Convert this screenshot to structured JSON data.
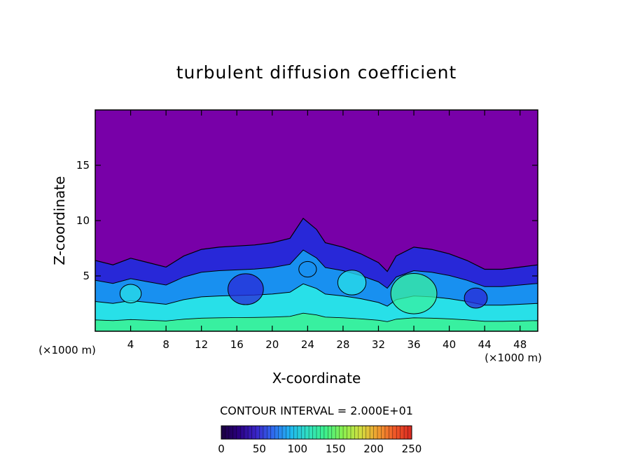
{
  "chart_data": {
    "type": "heatmap",
    "title": "turbulent diffusion coefficient",
    "xlabel": "X-coordinate",
    "ylabel": "Z-coordinate",
    "x_unit": "(×1000 m)",
    "z_unit": "(×1000 m)",
    "xlim": [
      0,
      50
    ],
    "ylim": [
      0,
      20
    ],
    "x_ticks": [
      4,
      8,
      12,
      16,
      20,
      24,
      28,
      32,
      36,
      40,
      44,
      48
    ],
    "y_ticks": [
      5,
      10,
      15
    ],
    "contour_interval_text": "CONTOUR INTERVAL = 2.000E+01",
    "colorbar": {
      "range": [
        0,
        250
      ],
      "ticks": [
        0,
        50,
        100,
        150,
        200,
        250
      ],
      "colors": [
        "#1a0040",
        "#2a0080",
        "#3a24c8",
        "#2f6cf0",
        "#1fb8f0",
        "#30e0c0",
        "#3cf08c",
        "#88f050",
        "#d0e040",
        "#f0a030",
        "#f05828",
        "#d82820"
      ]
    },
    "field_colors": {
      "background": "#7800a8",
      "low": "#2828d8",
      "mid": "#1890f0",
      "high": "#28e0e8",
      "peak": "#38f0a0"
    },
    "turbulent_layer_top": [
      {
        "x": 0,
        "z": 6.4
      },
      {
        "x": 2,
        "z": 6.0
      },
      {
        "x": 4,
        "z": 6.6
      },
      {
        "x": 6,
        "z": 6.2
      },
      {
        "x": 8,
        "z": 5.8
      },
      {
        "x": 10,
        "z": 6.8
      },
      {
        "x": 12,
        "z": 7.4
      },
      {
        "x": 14,
        "z": 7.6
      },
      {
        "x": 16,
        "z": 7.7
      },
      {
        "x": 18,
        "z": 7.8
      },
      {
        "x": 20,
        "z": 8.0
      },
      {
        "x": 22,
        "z": 8.4
      },
      {
        "x": 23.5,
        "z": 10.2
      },
      {
        "x": 25,
        "z": 9.2
      },
      {
        "x": 26,
        "z": 8.0
      },
      {
        "x": 28,
        "z": 7.6
      },
      {
        "x": 30,
        "z": 7.0
      },
      {
        "x": 32,
        "z": 6.2
      },
      {
        "x": 33,
        "z": 5.4
      },
      {
        "x": 34,
        "z": 6.8
      },
      {
        "x": 36,
        "z": 7.6
      },
      {
        "x": 38,
        "z": 7.4
      },
      {
        "x": 40,
        "z": 7.0
      },
      {
        "x": 42,
        "z": 6.4
      },
      {
        "x": 44,
        "z": 5.6
      },
      {
        "x": 46,
        "z": 5.6
      },
      {
        "x": 48,
        "z": 5.8
      },
      {
        "x": 50,
        "z": 6.0
      }
    ]
  }
}
